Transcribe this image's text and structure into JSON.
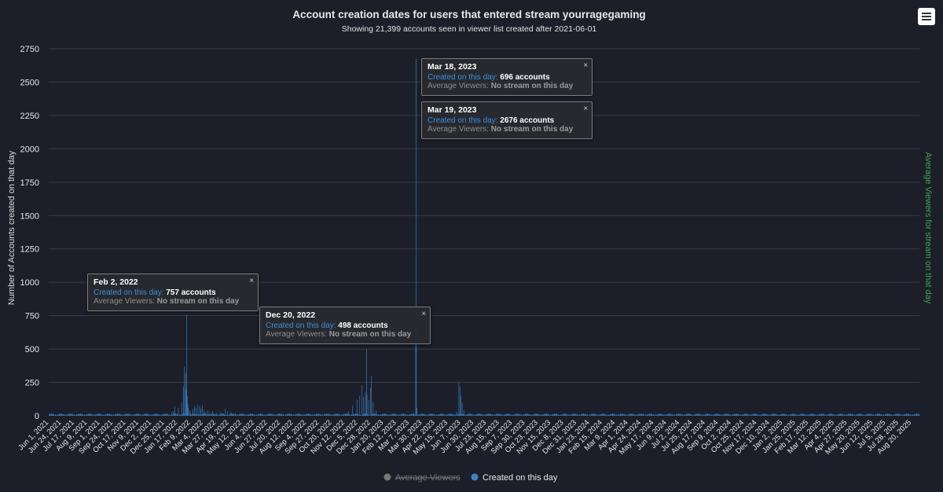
{
  "menu_icon": "hamburger-menu-icon",
  "colors": {
    "background": "#1c1f2a",
    "bar": "#3b82c4",
    "grid": "#3a3d47",
    "text": "#e6e6e6",
    "right_axis": "#3fa34d",
    "legend_disabled": "#777777"
  },
  "chart_data": {
    "type": "bar",
    "title": "Account creation dates for users that entered stream yourragegaming",
    "subtitle": "Showing 21,399 accounts seen in viewer list created after 2021-06-01",
    "ylabel": "Number of Accounts created on that day",
    "ylabel_right": "Average Viewers for stream on that day",
    "ylim": [
      0,
      2750
    ],
    "yticks": [
      0,
      250,
      500,
      750,
      1000,
      1250,
      1500,
      1750,
      2000,
      2250,
      2500,
      2750
    ],
    "xlim": [
      "2021-06-01",
      "2025-09-03"
    ],
    "xticks": [
      "Jun 1, 2021",
      "Jun 24, 2021",
      "Jul 17, 2021",
      "Aug 9, 2021",
      "Sep 1, 2021",
      "Sep 24, 2021",
      "Oct 17, 2021",
      "Nov 9, 2021",
      "Dec 2, 2021",
      "Dec 25, 2021",
      "Jan 17, 2022",
      "Feb 9, 2022",
      "Mar 4, 2022",
      "Mar 27, 2022",
      "Apr 19, 2022",
      "May 12, 2022",
      "Jun 4, 2022",
      "Jun 27, 2022",
      "Jul 20, 2022",
      "Aug 12, 2022",
      "Sep 4, 2022",
      "Sep 27, 2022",
      "Oct 20, 2022",
      "Nov 12, 2022",
      "Dec 5, 2022",
      "Dec 28, 2022",
      "Jan 20, 2023",
      "Feb 12, 2023",
      "Mar 7, 2023",
      "Mar 30, 2023",
      "Apr 22, 2023",
      "May 15, 2023",
      "Jun 7, 2023",
      "Jun 30, 2023",
      "Jul 23, 2023",
      "Aug 15, 2023",
      "Sep 7, 2023",
      "Sep 30, 2023",
      "Oct 23, 2023",
      "Nov 15, 2023",
      "Dec 8, 2023",
      "Dec 31, 2023",
      "Jan 23, 2024",
      "Feb 15, 2024",
      "Mar 9, 2024",
      "Apr 1, 2024",
      "Apr 24, 2024",
      "May 17, 2024",
      "Jun 9, 2024",
      "Jul 2, 2024",
      "Jul 25, 2024",
      "Aug 17, 2024",
      "Sep 9, 2024",
      "Oct 2, 2024",
      "Oct 25, 2024",
      "Nov 17, 2024",
      "Dec 10, 2024",
      "Jan 2, 2025",
      "Jan 25, 2025",
      "Feb 17, 2025",
      "Mar 12, 2025",
      "Apr 4, 2025",
      "Apr 27, 2025",
      "May 20, 2025",
      "Jun 12, 2025",
      "Jul 5, 2025",
      "Jul 28, 2025",
      "Aug 20, 2025"
    ],
    "series": [
      {
        "name": "Created on this day",
        "baseline": 10,
        "points": [
          [
            "2022-01-06",
            25
          ],
          [
            "2022-01-09",
            35
          ],
          [
            "2022-01-12",
            70
          ],
          [
            "2022-01-18",
            60
          ],
          [
            "2022-01-24",
            100
          ],
          [
            "2022-01-27",
            220
          ],
          [
            "2022-01-29",
            370
          ],
          [
            "2022-01-31",
            320
          ],
          [
            "2022-02-01",
            200
          ],
          [
            "2022-02-02",
            757
          ],
          [
            "2022-02-03",
            150
          ],
          [
            "2022-02-04",
            90
          ],
          [
            "2022-02-05",
            60
          ],
          [
            "2022-02-07",
            40
          ],
          [
            "2022-02-09",
            30
          ],
          [
            "2022-02-13",
            50
          ],
          [
            "2022-02-16",
            75
          ],
          [
            "2022-02-19",
            60
          ],
          [
            "2022-02-22",
            85
          ],
          [
            "2022-02-25",
            70
          ],
          [
            "2022-02-27",
            55
          ],
          [
            "2022-03-02",
            80
          ],
          [
            "2022-03-05",
            45
          ],
          [
            "2022-03-08",
            30
          ],
          [
            "2022-03-12",
            40
          ],
          [
            "2022-03-15",
            25
          ],
          [
            "2022-03-20",
            35
          ],
          [
            "2022-03-27",
            20
          ],
          [
            "2022-04-04",
            25
          ],
          [
            "2022-04-12",
            50
          ],
          [
            "2022-04-16",
            35
          ],
          [
            "2022-04-22",
            30
          ],
          [
            "2022-04-30",
            20
          ],
          [
            "2022-11-18",
            35
          ],
          [
            "2022-11-25",
            75
          ],
          [
            "2022-12-03",
            120
          ],
          [
            "2022-12-08",
            150
          ],
          [
            "2022-12-12",
            230
          ],
          [
            "2022-12-15",
            140
          ],
          [
            "2022-12-18",
            180
          ],
          [
            "2022-12-20",
            498
          ],
          [
            "2022-12-21",
            160
          ],
          [
            "2022-12-24",
            120
          ],
          [
            "2022-12-27",
            210
          ],
          [
            "2022-12-29",
            300
          ],
          [
            "2023-01-01",
            100
          ],
          [
            "2023-01-06",
            40
          ],
          [
            "2023-03-18",
            696
          ],
          [
            "2023-03-19",
            2676
          ],
          [
            "2023-03-20",
            60
          ],
          [
            "2023-05-30",
            30
          ],
          [
            "2023-06-03",
            245
          ],
          [
            "2023-06-05",
            220
          ],
          [
            "2023-06-07",
            150
          ],
          [
            "2023-06-09",
            100
          ],
          [
            "2023-06-12",
            40
          ]
        ]
      },
      {
        "name": "Average Viewers",
        "hidden": true
      }
    ],
    "legend": [
      {
        "label": "Average Viewers",
        "disabled": true
      },
      {
        "label": "Created on this day",
        "disabled": false
      }
    ],
    "legend_position": "bottom-center",
    "tooltips": [
      {
        "date": "Feb 2, 2022",
        "created_label": "Created on this day:",
        "created_value": "757 accounts",
        "viewers_label": "Average Viewers:",
        "viewers_value": "No stream on this day",
        "close": "×"
      },
      {
        "date": "Dec 20, 2022",
        "created_label": "Created on this day:",
        "created_value": "498 accounts",
        "viewers_label": "Average Viewers:",
        "viewers_value": "No stream on this day",
        "close": "×"
      },
      {
        "date": "Mar 18, 2023",
        "created_label": "Created on this day:",
        "created_value": "696 accounts",
        "viewers_label": "Average Viewers:",
        "viewers_value": "No stream on this day",
        "close": "×"
      },
      {
        "date": "Mar 19, 2023",
        "created_label": "Created on this day:",
        "created_value": "2676 accounts",
        "viewers_label": "Average Viewers:",
        "viewers_value": "No stream on this day",
        "close": "×"
      }
    ]
  }
}
